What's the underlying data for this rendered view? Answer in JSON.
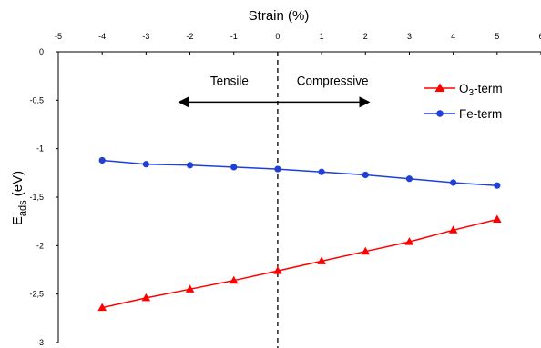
{
  "chart_data": {
    "type": "line",
    "xlabel": "Strain (%)",
    "ylabel": "E",
    "ylabel_sub": "ads",
    "ylabel_unit": " (eV)",
    "xlim": [
      -5,
      6
    ],
    "ylim": [
      -3,
      0
    ],
    "x_ticks": [
      "-5",
      "-4",
      "-3",
      "-2",
      "-1",
      "0",
      "1",
      "2",
      "3",
      "4",
      "5",
      "6"
    ],
    "y_ticks": [
      "0",
      "-0,5",
      "-1",
      "-1,5",
      "-2",
      "-2,5",
      "-3"
    ],
    "x_tick_values": [
      -5,
      -4,
      -3,
      -2,
      -1,
      0,
      1,
      2,
      3,
      4,
      5,
      6
    ],
    "y_tick_values": [
      0,
      -0.5,
      -1,
      -1.5,
      -2,
      -2.5,
      -3
    ],
    "x_axis_position": "top",
    "grid": false,
    "legend_position": "top-right",
    "reference_line": {
      "x": 0,
      "style": "dashed"
    },
    "annotations": {
      "left_label": "Tensile",
      "right_label": "Compressive",
      "arrow_from": -2,
      "arrow_to": 2,
      "arrow_y": -0.5
    },
    "series": [
      {
        "name": "O",
        "name_sub": "3",
        "name_suffix": "-term",
        "marker": "triangle",
        "color": "#ff0000",
        "x": [
          -4,
          -3,
          -2,
          -1,
          0,
          1,
          2,
          3,
          4,
          5
        ],
        "values": [
          -2.64,
          -2.54,
          -2.45,
          -2.36,
          -2.26,
          -2.16,
          -2.06,
          -1.96,
          -1.84,
          -1.73
        ]
      },
      {
        "name": "Fe-term",
        "marker": "circle",
        "color": "#1f3fd6",
        "x": [
          -4,
          -3,
          -2,
          -1,
          0,
          1,
          2,
          3,
          4,
          5
        ],
        "values": [
          -1.12,
          -1.16,
          -1.17,
          -1.19,
          -1.21,
          -1.24,
          -1.27,
          -1.31,
          -1.35,
          -1.38
        ]
      }
    ]
  }
}
